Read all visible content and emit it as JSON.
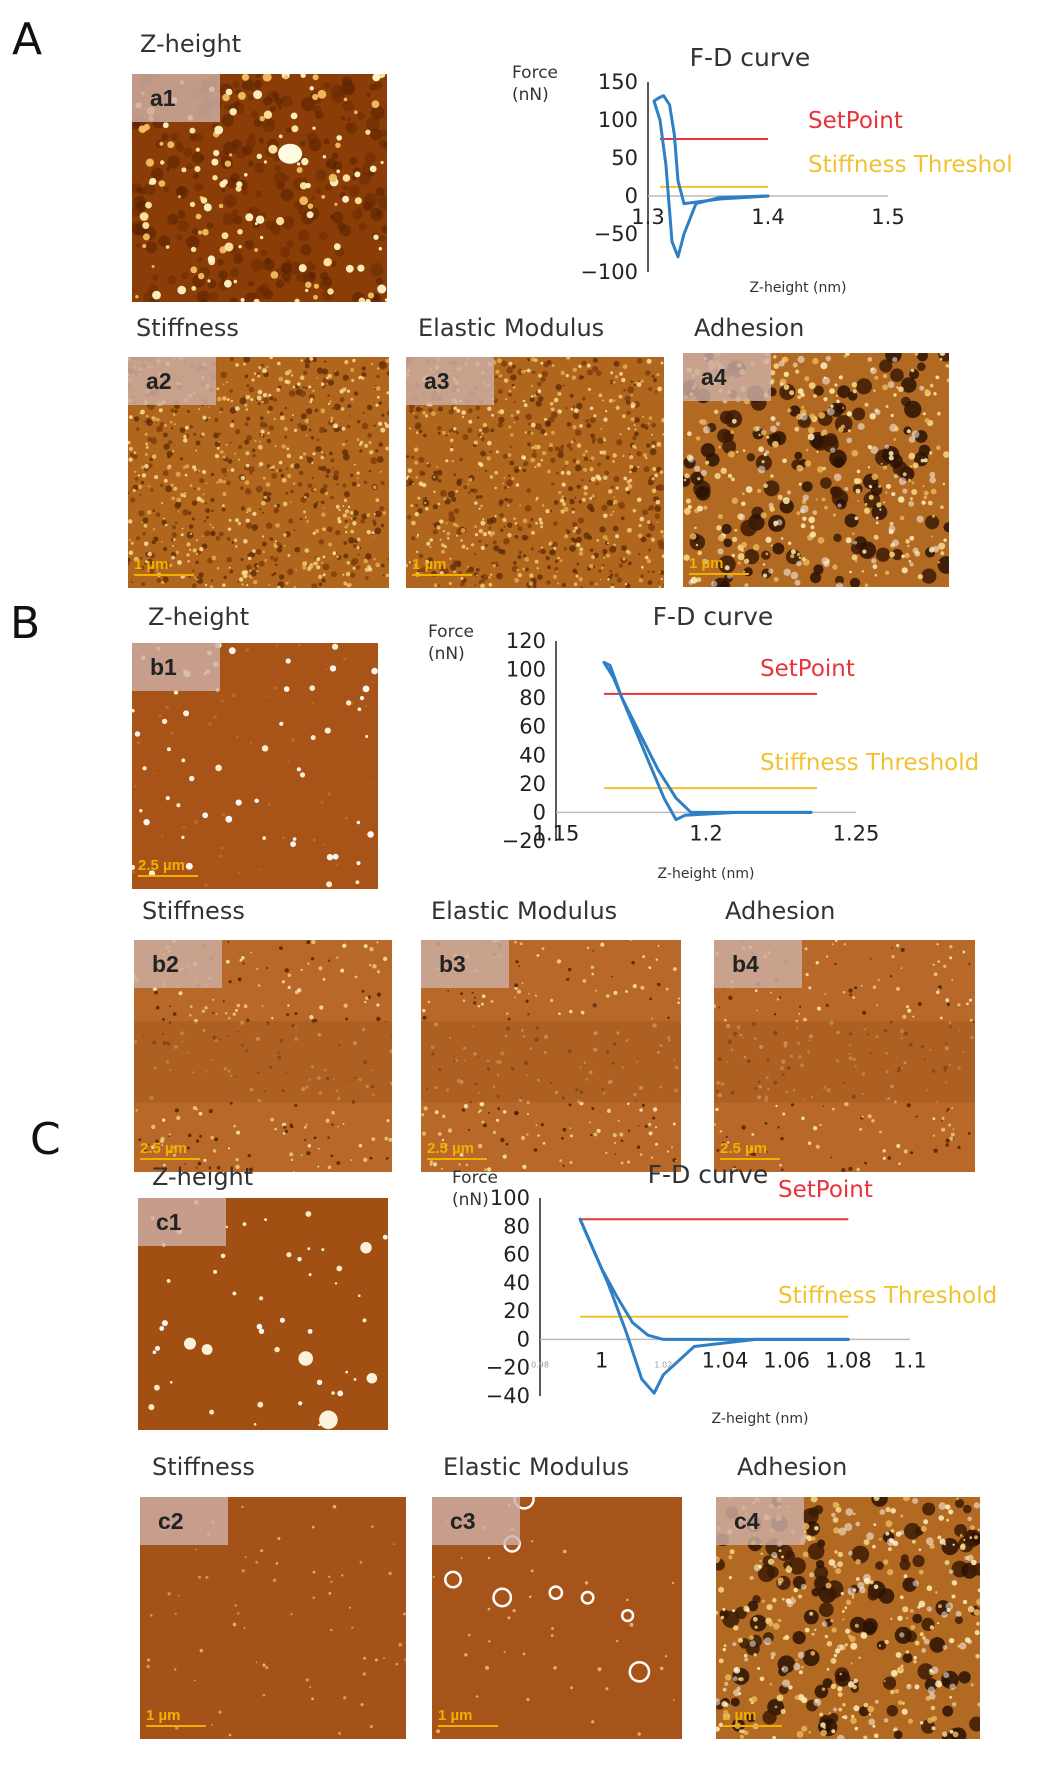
{
  "sections": [
    {
      "letter": "A",
      "images": [
        {
          "id": "a1",
          "title": "Z-height",
          "scale": "",
          "style": "grainy"
        },
        {
          "id": "a2",
          "title": "Stiffness",
          "scale": "1 µm",
          "style": "texture"
        },
        {
          "id": "a3",
          "title": "Elastic Modulus",
          "scale": "1 µm",
          "style": "texture"
        },
        {
          "id": "a4",
          "title": "Adhesion",
          "scale": "1 µm",
          "style": "blotchy"
        }
      ]
    },
    {
      "letter": "B",
      "images": [
        {
          "id": "b1",
          "title": "Z-height",
          "scale": "2.5 µm",
          "style": "dots"
        },
        {
          "id": "b2",
          "title": "Stiffness",
          "scale": "2.5 µm",
          "style": "banded"
        },
        {
          "id": "b3",
          "title": "Elastic Modulus",
          "scale": "2.5 µm",
          "style": "banded"
        },
        {
          "id": "b4",
          "title": "Adhesion",
          "scale": "2.5 µm",
          "style": "banded"
        }
      ]
    },
    {
      "letter": "C",
      "images": [
        {
          "id": "c1",
          "title": "Z-height",
          "scale": "",
          "style": "dots-big"
        },
        {
          "id": "c2",
          "title": "Stiffness",
          "scale": "1 µm",
          "style": "smooth"
        },
        {
          "id": "c3",
          "title": "Elastic Modulus",
          "scale": "1 µm",
          "style": "rings"
        },
        {
          "id": "c4",
          "title": "Adhesion",
          "scale": "1 µm",
          "style": "blotchy"
        }
      ]
    }
  ],
  "colors": {
    "approach_curve": "#2f7fc4",
    "setpoint": "#e8333a",
    "threshold": "#f2c12e",
    "afm_base": "#9a4a10",
    "afm_bright": "#fff6c8",
    "label_bg": "#cdb0a5",
    "scale_bar": "#f1b000"
  },
  "chart_data": [
    {
      "type": "line",
      "title": "F-D curve",
      "ylabel": "Force\n(nN)",
      "xlabel": "Z-height (nm)",
      "xlim": [
        1.3,
        1.5
      ],
      "ylim": [
        -100,
        150
      ],
      "x_ticks": [
        "1.3",
        "1.4",
        "1.5"
      ],
      "y_ticks": [
        "150",
        "100",
        "50",
        "0",
        "−50",
        "−100"
      ],
      "series": [
        {
          "x": [
            1.31,
            1.313,
            1.318,
            1.322,
            1.325,
            1.33,
            1.34,
            1.36,
            1.38,
            1.4
          ],
          "y": [
            130,
            132,
            120,
            80,
            20,
            -10,
            -8,
            -4,
            -2,
            0
          ]
        },
        {
          "x": [
            1.4,
            1.36,
            1.34,
            1.33,
            1.325,
            1.32,
            1.315,
            1.31,
            1.305,
            1.31
          ],
          "y": [
            0,
            -2,
            -10,
            -50,
            -80,
            -60,
            40,
            100,
            125,
            130
          ]
        }
      ],
      "hlines": [
        {
          "name": "SetPoint",
          "y": 75,
          "x_from": 1.31,
          "x_to": 1.4,
          "color": "#e8333a"
        },
        {
          "name": "Stiffness Threshol",
          "y": 12,
          "x_from": 1.31,
          "x_to": 1.4,
          "color": "#f2c12e"
        }
      ]
    },
    {
      "type": "line",
      "title": "F-D curve",
      "ylabel": "Force\n(nN)",
      "xlabel": "Z-height (nm)",
      "xlim": [
        1.15,
        1.25
      ],
      "ylim": [
        -20,
        120
      ],
      "x_ticks": [
        "1.15",
        "1.2",
        "1.25"
      ],
      "y_ticks": [
        "120",
        "100",
        "80",
        "60",
        "40",
        "20",
        "0",
        "−20"
      ],
      "series": [
        {
          "x": [
            1.166,
            1.168,
            1.172,
            1.178,
            1.184,
            1.19,
            1.195,
            1.21,
            1.235
          ],
          "y": [
            105,
            103,
            80,
            55,
            30,
            10,
            0,
            0,
            0
          ]
        },
        {
          "x": [
            1.235,
            1.21,
            1.193,
            1.19,
            1.186,
            1.18,
            1.174,
            1.169,
            1.166
          ],
          "y": [
            0,
            0,
            -2,
            -5,
            10,
            40,
            70,
            95,
            105
          ]
        }
      ],
      "hlines": [
        {
          "name": "SetPoint",
          "y": 83,
          "x_from": 1.166,
          "x_to": 1.237,
          "color": "#e8333a"
        },
        {
          "name": "Stiffness Threshold",
          "y": 17,
          "x_from": 1.166,
          "x_to": 1.237,
          "color": "#f2c12e"
        }
      ]
    },
    {
      "type": "line",
      "title": "F-D curve",
      "ylabel": "Force\n(nN)",
      "xlabel": "Z-height (nm)",
      "xlim": [
        0.98,
        1.1
      ],
      "ylim": [
        -40,
        100
      ],
      "x_ticks": [
        "0.98",
        "1",
        "1.02",
        "1.04",
        "1.06",
        "1.08",
        "1.1"
      ],
      "y_ticks": [
        "100",
        "80",
        "60",
        "40",
        "20",
        "0",
        "−20",
        "−40"
      ],
      "series": [
        {
          "x": [
            0.993,
            0.996,
            1.0,
            1.005,
            1.01,
            1.015,
            1.02,
            1.03,
            1.05,
            1.08
          ],
          "y": [
            85,
            70,
            50,
            30,
            12,
            3,
            0,
            0,
            0,
            0
          ]
        },
        {
          "x": [
            1.08,
            1.05,
            1.03,
            1.02,
            1.017,
            1.013,
            1.008,
            1.002,
            0.996,
            0.993
          ],
          "y": [
            0,
            0,
            -5,
            -25,
            -38,
            -28,
            5,
            40,
            70,
            85
          ]
        }
      ],
      "hlines": [
        {
          "name": "SetPoint",
          "y": 85,
          "x_from": 0.993,
          "x_to": 1.08,
          "color": "#e8333a"
        },
        {
          "name": "Stiffness Threshold",
          "y": 16,
          "x_from": 0.993,
          "x_to": 1.08,
          "color": "#f2c12e"
        }
      ]
    }
  ]
}
